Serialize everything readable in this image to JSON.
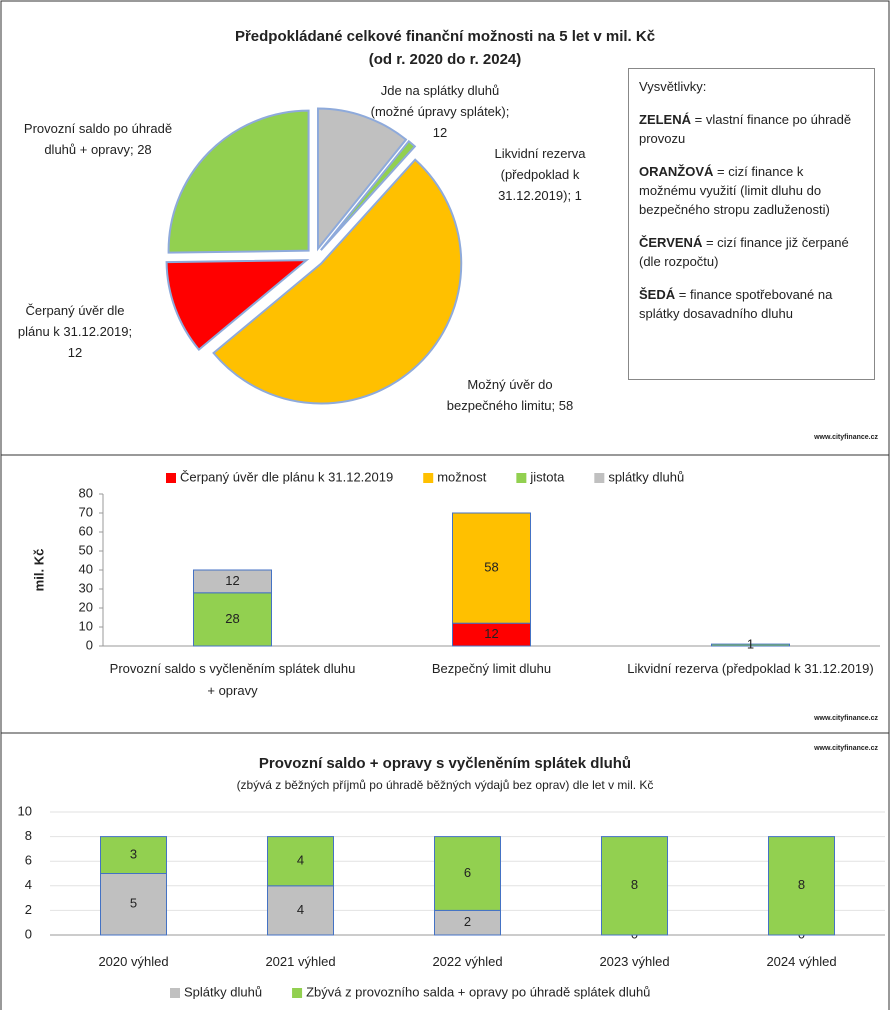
{
  "chart_data": [
    {
      "type": "pie",
      "title": "Předpokládané celkové finanční možnosti na 5 let v mil. Kč",
      "subtitle": "(od r. 2020 do r. 2024)",
      "labels": [
        "Jde na splátky dluhů (možné úpravy splátek); 12",
        "Likvidní rezerva (předpoklad k 31.12.2019); 1",
        "Možný úvěr do bezpečného limitu; 58",
        "Čerpaný úvěr dle plánu k 31.12.2019; 12",
        "Provozní saldo po úhradě dluhů + opravy; 28"
      ],
      "values": [
        12,
        1,
        58,
        12,
        28
      ],
      "colors": [
        "#c0c0c0",
        "#92d050",
        "#ffc000",
        "#ff0000",
        "#92d050"
      ],
      "notes": {
        "title": "Vysvětlivky:",
        "items": [
          {
            "key": "ZELENÁ",
            "text": "= vlastní finance po úhradě provozu"
          },
          {
            "key": "ORANŽOVÁ",
            "text": "= cizí finance k možnému využití (limit dluhu do bezpečného stropu zadluženosti)"
          },
          {
            "key": "ČERVENÁ",
            "text": "= cizí finance již čerpané (dle rozpočtu)"
          },
          {
            "key": "ŠEDÁ",
            "text": "= finance spotřebované na splátky dosavadního dluhu"
          }
        ]
      },
      "source": "www.cityfinance.cz"
    },
    {
      "type": "stacked_bar",
      "y_label": "mil. Kč",
      "categories": [
        "Provozní saldo s vyčleněním splátek dluhu + opravy",
        "Bezpečný limit dluhu",
        "Likvidní rezerva (předpoklad k 31.12.2019)"
      ],
      "series": [
        {
          "name": "Čerpaný úvěr dle plánu k 31.12.2019",
          "color": "#ff0000",
          "values": [
            null,
            12,
            null
          ]
        },
        {
          "name": "možnost",
          "color": "#ffc000",
          "values": [
            null,
            58,
            null
          ]
        },
        {
          "name": "jistota",
          "color": "#92d050",
          "values": [
            28,
            null,
            1
          ]
        },
        {
          "name": "splátky dluhů",
          "color": "#c0c0c0",
          "values": [
            12,
            null,
            null
          ]
        }
      ],
      "ylim": [
        0,
        80
      ],
      "yticks": [
        0,
        10,
        20,
        30,
        40,
        50,
        60,
        70,
        80
      ],
      "grid": false,
      "legend": "top",
      "source": "www.cityfinance.cz"
    },
    {
      "type": "stacked_bar",
      "title": "Provozní saldo + opravy s vyčleněním splátek dluhů",
      "subtitle": "(zbývá z běžných příjmů po úhradě běžných výdajů bez oprav) dle let v mil. Kč",
      "categories": [
        "2020 výhled",
        "2021 výhled",
        "2022 výhled",
        "2023 výhled",
        "2024 výhled"
      ],
      "series": [
        {
          "name": "Splátky dluhů",
          "color": "#c0c0c0",
          "values": [
            5,
            4,
            2,
            0,
            0
          ]
        },
        {
          "name": "Zbývá z provozního salda + opravy po úhradě splátek dluhů",
          "color": "#92d050",
          "values": [
            3,
            4,
            6,
            8,
            8
          ]
        }
      ],
      "ylim": [
        0,
        10
      ],
      "yticks": [
        0,
        2,
        4,
        6,
        8,
        10
      ],
      "grid": true,
      "legend": "bottom",
      "source": "www.cityfinance.cz"
    }
  ]
}
